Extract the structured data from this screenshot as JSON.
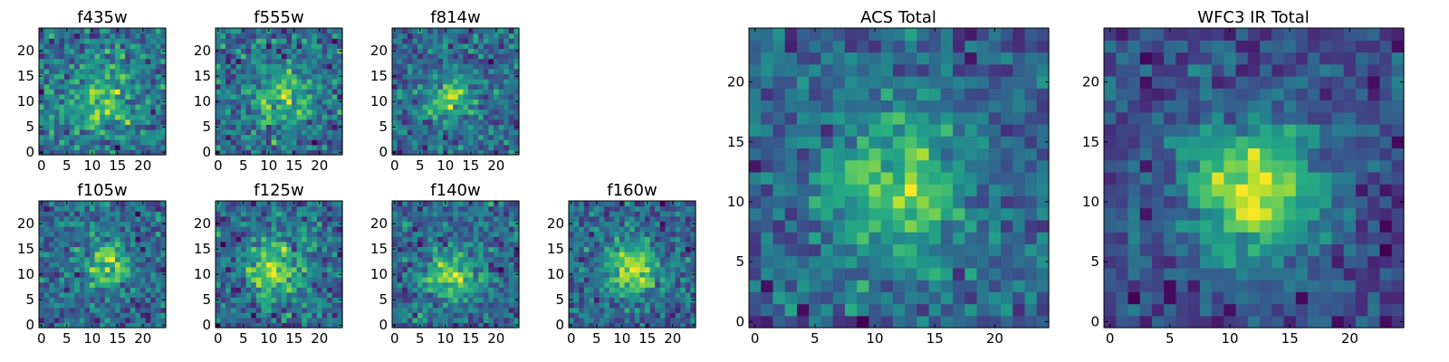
{
  "chart_data": [
    {
      "type": "heatmap",
      "title": "f435w",
      "grid": "25x25 pixels",
      "xlim": [
        0,
        24
      ],
      "ylim": [
        0,
        24
      ],
      "xticks": [
        0,
        5,
        10,
        15,
        20
      ],
      "yticks": [
        0,
        5,
        10,
        15,
        20
      ],
      "peak": [
        12,
        11
      ],
      "seed": 11,
      "sigma": 5.0,
      "noise": 0.9,
      "bias": 0.55,
      "colormap": "viridis"
    },
    {
      "type": "heatmap",
      "title": "f555w",
      "grid": "25x25 pixels",
      "xlim": [
        0,
        24
      ],
      "ylim": [
        0,
        24
      ],
      "xticks": [
        0,
        5,
        10,
        15,
        20
      ],
      "yticks": [
        0,
        5,
        10,
        15,
        20
      ],
      "peak": [
        13,
        11
      ],
      "seed": 23,
      "sigma": 4.5,
      "noise": 0.85,
      "bias": 0.5,
      "colormap": "viridis"
    },
    {
      "type": "heatmap",
      "title": "f814w",
      "grid": "25x25 pixels",
      "xlim": [
        0,
        24
      ],
      "ylim": [
        0,
        24
      ],
      "xticks": [
        0,
        5,
        10,
        15,
        20
      ],
      "yticks": [
        0,
        5,
        10,
        15,
        20
      ],
      "peak": [
        11,
        11
      ],
      "seed": 37,
      "sigma": 3.0,
      "noise": 0.65,
      "bias": 0.3,
      "colormap": "viridis"
    },
    {
      "type": "heatmap",
      "title": "f105w",
      "grid": "25x25 pixels",
      "xlim": [
        0,
        24
      ],
      "ylim": [
        0,
        24
      ],
      "xticks": [
        0,
        5,
        10,
        15,
        20
      ],
      "yticks": [
        0,
        5,
        10,
        15,
        20
      ],
      "peak": [
        13,
        12
      ],
      "seed": 41,
      "sigma": 3.0,
      "noise": 0.55,
      "bias": 0.2,
      "colormap": "viridis"
    },
    {
      "type": "heatmap",
      "title": "f125w",
      "grid": "25x25 pixels",
      "xlim": [
        0,
        24
      ],
      "ylim": [
        0,
        24
      ],
      "xticks": [
        0,
        5,
        10,
        15,
        20
      ],
      "yticks": [
        0,
        5,
        10,
        15,
        20
      ],
      "peak": [
        11,
        11
      ],
      "seed": 53,
      "sigma": 3.8,
      "noise": 0.55,
      "bias": 0.3,
      "colormap": "viridis"
    },
    {
      "type": "heatmap",
      "title": "f140w",
      "grid": "25x25 pixels",
      "xlim": [
        0,
        24
      ],
      "ylim": [
        0,
        24
      ],
      "xticks": [
        0,
        5,
        10,
        15,
        20
      ],
      "yticks": [
        0,
        5,
        10,
        15,
        20
      ],
      "peak": [
        11,
        10
      ],
      "seed": 67,
      "sigma": 3.5,
      "noise": 0.55,
      "bias": 0.25,
      "colormap": "viridis"
    },
    {
      "type": "heatmap",
      "title": "f160w",
      "grid": "25x25 pixels",
      "xlim": [
        0,
        24
      ],
      "ylim": [
        0,
        24
      ],
      "xticks": [
        0,
        5,
        10,
        15,
        20
      ],
      "yticks": [
        0,
        5,
        10,
        15,
        20
      ],
      "peak": [
        12,
        11
      ],
      "seed": 79,
      "sigma": 3.5,
      "noise": 0.45,
      "bias": 0.3,
      "colormap": "viridis"
    },
    {
      "type": "heatmap",
      "title": "ACS Total",
      "grid": "25x25 pixels",
      "xlim": [
        0,
        24
      ],
      "ylim": [
        0,
        24
      ],
      "xticks": [
        0,
        5,
        10,
        15,
        20
      ],
      "yticks": [
        0,
        5,
        10,
        15,
        20
      ],
      "peak": [
        12,
        11
      ],
      "seed": 97,
      "sigma": 4.0,
      "noise": 0.5,
      "bias": 0.3,
      "colormap": "viridis"
    },
    {
      "type": "heatmap",
      "title": "WFC3 IR Total",
      "grid": "25x25 pixels",
      "xlim": [
        0,
        24
      ],
      "ylim": [
        0,
        24
      ],
      "xticks": [
        0,
        5,
        10,
        15,
        20
      ],
      "yticks": [
        0,
        5,
        10,
        15,
        20
      ],
      "peak": [
        12,
        11
      ],
      "seed": 131,
      "sigma": 4.0,
      "noise": 0.28,
      "bias": 0.22,
      "colormap": "viridis"
    }
  ]
}
